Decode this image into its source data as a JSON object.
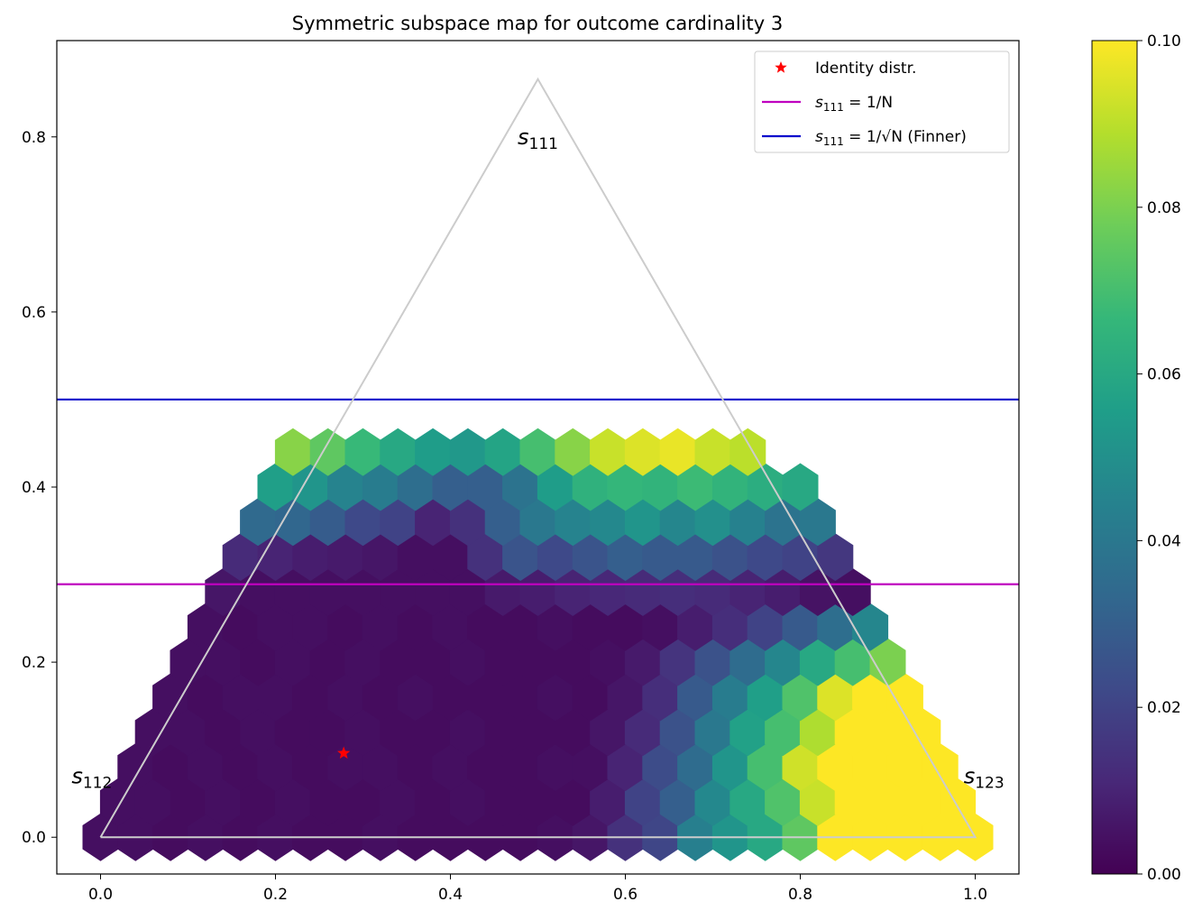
{
  "chart_data": {
    "type": "heatmap",
    "subtype": "hexbin",
    "title": "Symmetric subspace map for outcome cardinality 3",
    "xlim": [
      -0.05,
      1.05
    ],
    "ylim": [
      -0.042,
      0.91
    ],
    "xticks": [
      "0.0",
      "0.2",
      "0.4",
      "0.6",
      "0.8",
      "1.0"
    ],
    "xtick_values": [
      0.0,
      0.2,
      0.4,
      0.6,
      0.8,
      1.0
    ],
    "yticks": [
      "0.0",
      "0.2",
      "0.4",
      "0.6",
      "0.8"
    ],
    "ytick_values": [
      0.0,
      0.2,
      0.4,
      0.6,
      0.8
    ],
    "colormap": "viridis",
    "color_range": [
      0.0,
      0.1
    ],
    "colorbar_ticks": [
      "0.00",
      "0.02",
      "0.04",
      "0.06",
      "0.08",
      "0.10"
    ],
    "colorbar_tick_values": [
      0.0,
      0.02,
      0.04,
      0.06,
      0.08,
      0.1
    ],
    "hexbin": {
      "dx": 0.04,
      "dy": 0.04,
      "rows": [
        {
          "y": 0.0,
          "x0": 0.0,
          "values": [
            0.004,
            0.004,
            0.003,
            0.004,
            0.003,
            0.004,
            0.003,
            0.003,
            0.004,
            0.003,
            0.003,
            0.003,
            0.003,
            0.004,
            0.006,
            0.014,
            0.021,
            0.043,
            0.052,
            0.06,
            0.075,
            0.1,
            0.1,
            0.1,
            0.1,
            0.1
          ]
        },
        {
          "y": 0.04,
          "x0": 0.02,
          "values": [
            0.004,
            0.004,
            0.003,
            0.004,
            0.003,
            0.004,
            0.003,
            0.003,
            0.004,
            0.003,
            0.004,
            0.003,
            0.003,
            0.003,
            0.008,
            0.02,
            0.03,
            0.047,
            0.06,
            0.072,
            0.092,
            0.1,
            0.1,
            0.1,
            0.1
          ]
        },
        {
          "y": 0.08,
          "x0": 0.04,
          "values": [
            0.004,
            0.003,
            0.004,
            0.003,
            0.004,
            0.003,
            0.004,
            0.004,
            0.003,
            0.004,
            0.003,
            0.003,
            0.004,
            0.004,
            0.01,
            0.023,
            0.035,
            0.052,
            0.07,
            0.093,
            0.1,
            0.1,
            0.1,
            0.1
          ]
        },
        {
          "y": 0.12,
          "x0": 0.06,
          "values": [
            0.004,
            0.004,
            0.003,
            0.004,
            0.003,
            0.003,
            0.004,
            0.003,
            0.003,
            0.004,
            0.003,
            0.003,
            0.003,
            0.006,
            0.012,
            0.025,
            0.04,
            0.057,
            0.07,
            0.088,
            0.1,
            0.1,
            0.1
          ]
        },
        {
          "y": 0.16,
          "x0": 0.08,
          "values": [
            0.004,
            0.003,
            0.004,
            0.004,
            0.003,
            0.004,
            0.003,
            0.004,
            0.003,
            0.003,
            0.003,
            0.004,
            0.003,
            0.006,
            0.013,
            0.028,
            0.042,
            0.056,
            0.072,
            0.095,
            0.1,
            0.1
          ]
        },
        {
          "y": 0.2,
          "x0": 0.1,
          "values": [
            0.004,
            0.004,
            0.003,
            0.004,
            0.003,
            0.004,
            0.003,
            0.003,
            0.004,
            0.003,
            0.003,
            0.003,
            0.004,
            0.007,
            0.015,
            0.025,
            0.035,
            0.046,
            0.06,
            0.07,
            0.08
          ]
        },
        {
          "y": 0.24,
          "x0": 0.12,
          "values": [
            0.004,
            0.003,
            0.004,
            0.004,
            0.003,
            0.004,
            0.003,
            0.004,
            0.003,
            0.003,
            0.004,
            0.003,
            0.003,
            0.004,
            0.008,
            0.013,
            0.02,
            0.028,
            0.036,
            0.046
          ]
        },
        {
          "y": 0.28,
          "x0": 0.14,
          "values": [
            0.006,
            0.004,
            0.004,
            0.004,
            0.004,
            0.004,
            0.004,
            0.004,
            0.007,
            0.008,
            0.01,
            0.011,
            0.012,
            0.013,
            0.012,
            0.01,
            0.008,
            0.005,
            0.004
          ]
        },
        {
          "y": 0.32,
          "x0": 0.16,
          "values": [
            0.012,
            0.01,
            0.008,
            0.007,
            0.006,
            0.004,
            0.004,
            0.014,
            0.026,
            0.022,
            0.026,
            0.03,
            0.028,
            0.028,
            0.025,
            0.022,
            0.02,
            0.016
          ]
        },
        {
          "y": 0.36,
          "x0": 0.18,
          "values": [
            0.034,
            0.033,
            0.029,
            0.022,
            0.02,
            0.01,
            0.014,
            0.03,
            0.04,
            0.045,
            0.047,
            0.052,
            0.046,
            0.05,
            0.044,
            0.038,
            0.04
          ]
        },
        {
          "y": 0.4,
          "x0": 0.2,
          "values": [
            0.056,
            0.052,
            0.045,
            0.042,
            0.036,
            0.03,
            0.03,
            0.038,
            0.055,
            0.064,
            0.066,
            0.065,
            0.068,
            0.065,
            0.062,
            0.06
          ]
        },
        {
          "y": 0.44,
          "x0": 0.22,
          "values": [
            0.082,
            0.075,
            0.067,
            0.06,
            0.055,
            0.053,
            0.058,
            0.07,
            0.082,
            0.092,
            0.095,
            0.097,
            0.092,
            0.09
          ]
        }
      ]
    },
    "triangle": {
      "vertices": [
        [
          0.0,
          0.0
        ],
        [
          1.0,
          0.0
        ],
        [
          0.5,
          0.866
        ]
      ],
      "color": "#cccccc"
    },
    "vertex_labels": [
      {
        "base": "s",
        "sub": "111",
        "x": 0.5,
        "y": 0.8
      },
      {
        "base": "s",
        "sub": "112",
        "x": -0.01,
        "y": 0.07
      },
      {
        "base": "s",
        "sub": "123",
        "x": 1.01,
        "y": 0.07
      }
    ],
    "points": [
      {
        "name": "Identity distr.",
        "x": 0.278,
        "y": 0.096,
        "marker": "star",
        "color": "#ff0000"
      }
    ],
    "hlines": [
      {
        "name": "1/N",
        "y": 0.289,
        "color": "#bf00bf"
      },
      {
        "name": "1/sqrt(N) (Finner)",
        "y": 0.5,
        "color": "#0000cc"
      }
    ],
    "legend": {
      "placement": "top-right",
      "entries": [
        {
          "label": "Identity distr.",
          "kind": "marker",
          "color": "#ff0000"
        },
        {
          "label_base": "s",
          "label_sub": "111",
          "label_rest": " = 1/N",
          "kind": "line",
          "color": "#bf00bf"
        },
        {
          "label_base": "s",
          "label_sub": "111",
          "label_rest": " = 1/√N (Finner)",
          "kind": "line",
          "color": "#0000cc"
        }
      ]
    }
  }
}
